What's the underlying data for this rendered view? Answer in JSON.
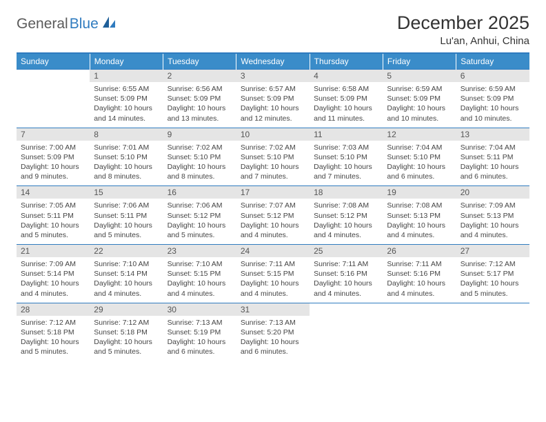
{
  "brand": {
    "part1": "General",
    "part2": "Blue"
  },
  "title": "December 2025",
  "location": "Lu'an, Anhui, China",
  "colors": {
    "header_bg": "#3a8cc9",
    "header_text": "#ffffff",
    "rule": "#2f7bbf",
    "daynum_bg": "#e5e5e5",
    "body_text": "#444444"
  },
  "typography": {
    "title_fontsize": 27,
    "location_fontsize": 15,
    "dayheader_fontsize": 12,
    "cell_fontsize": 10.5
  },
  "day_headers": [
    "Sunday",
    "Monday",
    "Tuesday",
    "Wednesday",
    "Thursday",
    "Friday",
    "Saturday"
  ],
  "weeks": [
    [
      {
        "n": "",
        "sunrise": "",
        "sunset": "",
        "daylight": ""
      },
      {
        "n": "1",
        "sunrise": "Sunrise: 6:55 AM",
        "sunset": "Sunset: 5:09 PM",
        "daylight": "Daylight: 10 hours and 14 minutes."
      },
      {
        "n": "2",
        "sunrise": "Sunrise: 6:56 AM",
        "sunset": "Sunset: 5:09 PM",
        "daylight": "Daylight: 10 hours and 13 minutes."
      },
      {
        "n": "3",
        "sunrise": "Sunrise: 6:57 AM",
        "sunset": "Sunset: 5:09 PM",
        "daylight": "Daylight: 10 hours and 12 minutes."
      },
      {
        "n": "4",
        "sunrise": "Sunrise: 6:58 AM",
        "sunset": "Sunset: 5:09 PM",
        "daylight": "Daylight: 10 hours and 11 minutes."
      },
      {
        "n": "5",
        "sunrise": "Sunrise: 6:59 AM",
        "sunset": "Sunset: 5:09 PM",
        "daylight": "Daylight: 10 hours and 10 minutes."
      },
      {
        "n": "6",
        "sunrise": "Sunrise: 6:59 AM",
        "sunset": "Sunset: 5:09 PM",
        "daylight": "Daylight: 10 hours and 10 minutes."
      }
    ],
    [
      {
        "n": "7",
        "sunrise": "Sunrise: 7:00 AM",
        "sunset": "Sunset: 5:09 PM",
        "daylight": "Daylight: 10 hours and 9 minutes."
      },
      {
        "n": "8",
        "sunrise": "Sunrise: 7:01 AM",
        "sunset": "Sunset: 5:10 PM",
        "daylight": "Daylight: 10 hours and 8 minutes."
      },
      {
        "n": "9",
        "sunrise": "Sunrise: 7:02 AM",
        "sunset": "Sunset: 5:10 PM",
        "daylight": "Daylight: 10 hours and 8 minutes."
      },
      {
        "n": "10",
        "sunrise": "Sunrise: 7:02 AM",
        "sunset": "Sunset: 5:10 PM",
        "daylight": "Daylight: 10 hours and 7 minutes."
      },
      {
        "n": "11",
        "sunrise": "Sunrise: 7:03 AM",
        "sunset": "Sunset: 5:10 PM",
        "daylight": "Daylight: 10 hours and 7 minutes."
      },
      {
        "n": "12",
        "sunrise": "Sunrise: 7:04 AM",
        "sunset": "Sunset: 5:10 PM",
        "daylight": "Daylight: 10 hours and 6 minutes."
      },
      {
        "n": "13",
        "sunrise": "Sunrise: 7:04 AM",
        "sunset": "Sunset: 5:11 PM",
        "daylight": "Daylight: 10 hours and 6 minutes."
      }
    ],
    [
      {
        "n": "14",
        "sunrise": "Sunrise: 7:05 AM",
        "sunset": "Sunset: 5:11 PM",
        "daylight": "Daylight: 10 hours and 5 minutes."
      },
      {
        "n": "15",
        "sunrise": "Sunrise: 7:06 AM",
        "sunset": "Sunset: 5:11 PM",
        "daylight": "Daylight: 10 hours and 5 minutes."
      },
      {
        "n": "16",
        "sunrise": "Sunrise: 7:06 AM",
        "sunset": "Sunset: 5:12 PM",
        "daylight": "Daylight: 10 hours and 5 minutes."
      },
      {
        "n": "17",
        "sunrise": "Sunrise: 7:07 AM",
        "sunset": "Sunset: 5:12 PM",
        "daylight": "Daylight: 10 hours and 4 minutes."
      },
      {
        "n": "18",
        "sunrise": "Sunrise: 7:08 AM",
        "sunset": "Sunset: 5:12 PM",
        "daylight": "Daylight: 10 hours and 4 minutes."
      },
      {
        "n": "19",
        "sunrise": "Sunrise: 7:08 AM",
        "sunset": "Sunset: 5:13 PM",
        "daylight": "Daylight: 10 hours and 4 minutes."
      },
      {
        "n": "20",
        "sunrise": "Sunrise: 7:09 AM",
        "sunset": "Sunset: 5:13 PM",
        "daylight": "Daylight: 10 hours and 4 minutes."
      }
    ],
    [
      {
        "n": "21",
        "sunrise": "Sunrise: 7:09 AM",
        "sunset": "Sunset: 5:14 PM",
        "daylight": "Daylight: 10 hours and 4 minutes."
      },
      {
        "n": "22",
        "sunrise": "Sunrise: 7:10 AM",
        "sunset": "Sunset: 5:14 PM",
        "daylight": "Daylight: 10 hours and 4 minutes."
      },
      {
        "n": "23",
        "sunrise": "Sunrise: 7:10 AM",
        "sunset": "Sunset: 5:15 PM",
        "daylight": "Daylight: 10 hours and 4 minutes."
      },
      {
        "n": "24",
        "sunrise": "Sunrise: 7:11 AM",
        "sunset": "Sunset: 5:15 PM",
        "daylight": "Daylight: 10 hours and 4 minutes."
      },
      {
        "n": "25",
        "sunrise": "Sunrise: 7:11 AM",
        "sunset": "Sunset: 5:16 PM",
        "daylight": "Daylight: 10 hours and 4 minutes."
      },
      {
        "n": "26",
        "sunrise": "Sunrise: 7:11 AM",
        "sunset": "Sunset: 5:16 PM",
        "daylight": "Daylight: 10 hours and 4 minutes."
      },
      {
        "n": "27",
        "sunrise": "Sunrise: 7:12 AM",
        "sunset": "Sunset: 5:17 PM",
        "daylight": "Daylight: 10 hours and 5 minutes."
      }
    ],
    [
      {
        "n": "28",
        "sunrise": "Sunrise: 7:12 AM",
        "sunset": "Sunset: 5:18 PM",
        "daylight": "Daylight: 10 hours and 5 minutes."
      },
      {
        "n": "29",
        "sunrise": "Sunrise: 7:12 AM",
        "sunset": "Sunset: 5:18 PM",
        "daylight": "Daylight: 10 hours and 5 minutes."
      },
      {
        "n": "30",
        "sunrise": "Sunrise: 7:13 AM",
        "sunset": "Sunset: 5:19 PM",
        "daylight": "Daylight: 10 hours and 6 minutes."
      },
      {
        "n": "31",
        "sunrise": "Sunrise: 7:13 AM",
        "sunset": "Sunset: 5:20 PM",
        "daylight": "Daylight: 10 hours and 6 minutes."
      },
      {
        "n": "",
        "sunrise": "",
        "sunset": "",
        "daylight": ""
      },
      {
        "n": "",
        "sunrise": "",
        "sunset": "",
        "daylight": ""
      },
      {
        "n": "",
        "sunrise": "",
        "sunset": "",
        "daylight": ""
      }
    ]
  ]
}
